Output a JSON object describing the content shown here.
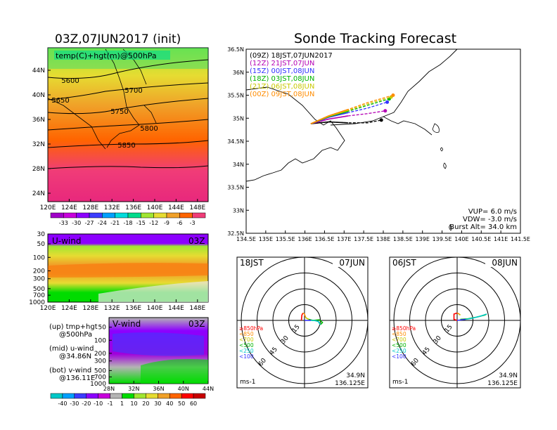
{
  "left_title": "03Z,07JUN2017 (init)",
  "right_title": "Sonde Tracking Forecast",
  "left_caption": {
    "line1": "(up) tmp+hgt",
    "line2": "@500hPa",
    "line3": "(mid) u-wind",
    "line4": "@34.86N",
    "line5": "(bot) v-wind",
    "line6": "@136.11E"
  },
  "chart_data": [
    {
      "type": "heatmap",
      "panel": "temperature-height-500hPa",
      "title": "temp(C)+hgt(m)@500hPa",
      "x_ticks": [
        "120E",
        "124E",
        "128E",
        "132E",
        "136E",
        "140E",
        "144E",
        "148E"
      ],
      "y_ticks": [
        "44N",
        "40N",
        "36N",
        "32N",
        "28N",
        "24N"
      ],
      "contour_labels": [
        "5600",
        "5650",
        "5700",
        "5750",
        "5800",
        "5850"
      ],
      "colorbar": {
        "labels": [
          "-33",
          "-30",
          "-27",
          "-24",
          "-21",
          "-18",
          "-15",
          "-12",
          "-9",
          "-6",
          "-3"
        ],
        "colors": [
          "#a000c8",
          "#c800dc",
          "#8c00ff",
          "#3c3cff",
          "#00a0ff",
          "#00dcdc",
          "#00dc8c",
          "#a0e632",
          "#e6dc32",
          "#f0a028",
          "#ff6400",
          "#f03c78"
        ]
      }
    },
    {
      "type": "heatmap",
      "panel": "u-wind-cross-section",
      "title": "U-wind",
      "time_label": "03Z",
      "x_ticks": [
        "120E",
        "124E",
        "128E",
        "132E",
        "136E",
        "140E",
        "144E",
        "148E"
      ],
      "y_ticks": [
        "30",
        "50",
        "100",
        "200",
        "300",
        "500",
        "700",
        "1000"
      ]
    },
    {
      "type": "heatmap",
      "panel": "v-wind-cross-section",
      "title": "V-wind",
      "time_label": "03Z",
      "x_ticks": [
        "28N",
        "32N",
        "36N",
        "40N",
        "44N"
      ],
      "y_ticks": [
        "50",
        "100",
        "200",
        "300",
        "500",
        "700",
        "1000"
      ],
      "colorbar": {
        "labels": [
          "-40",
          "-30",
          "-20",
          "-10",
          "-1",
          "1",
          "10",
          "20",
          "30",
          "40",
          "50",
          "60"
        ],
        "colors": [
          "#00c8c8",
          "#00a0ff",
          "#3c3cff",
          "#8c00ff",
          "#c800dc",
          "#b4b4b4",
          "#00dc00",
          "#a0e632",
          "#e6dc32",
          "#f0a028",
          "#ff6400",
          "#ff0000",
          "#c80000"
        ]
      }
    },
    {
      "type": "line",
      "panel": "sonde-track-map",
      "x_ticks": [
        "134.5E",
        "135E",
        "135.5E",
        "136E",
        "136.5E",
        "137E",
        "137.5E",
        "138E",
        "138.5E",
        "139E",
        "139.5E",
        "140E",
        "140.5E",
        "141E",
        "141.5E"
      ],
      "y_ticks": [
        "36.5N",
        "36N",
        "35.5N",
        "35N",
        "34.5N",
        "34N",
        "33.5N",
        "33N",
        "32.5N"
      ],
      "xlim": [
        134.5,
        141.5
      ],
      "ylim": [
        32.5,
        36.5
      ],
      "series": [
        {
          "name": "(09Z)  18JST,07JUN2017",
          "color": "#000000",
          "x": [
            136.15,
            136.6,
            137.1,
            137.6,
            137.95
          ],
          "y": [
            34.88,
            34.92,
            34.9,
            34.9,
            34.96
          ]
        },
        {
          "name": "(12Z)  21JST,07JUN",
          "color": "#b400b4",
          "x": [
            136.15,
            136.6,
            137.1,
            137.6,
            138.05
          ],
          "y": [
            34.88,
            34.98,
            35.05,
            35.1,
            35.16
          ]
        },
        {
          "name": "(15Z)  00JST,08JUN",
          "color": "#3232ff",
          "x": [
            136.15,
            136.6,
            137.1,
            137.6,
            138.1
          ],
          "y": [
            34.88,
            35.02,
            35.12,
            35.22,
            35.35
          ]
        },
        {
          "name": "(18Z)  03JST,08JUN",
          "color": "#00b400",
          "x": [
            136.15,
            136.6,
            137.1,
            137.6,
            138.15
          ],
          "y": [
            34.88,
            35.03,
            35.15,
            35.28,
            35.42
          ]
        },
        {
          "name": "(21Z)  06JST,08JUN",
          "color": "#c8c800",
          "x": [
            136.15,
            136.6,
            137.1,
            137.6,
            138.2
          ],
          "y": [
            34.88,
            35.04,
            35.17,
            35.31,
            35.46
          ]
        },
        {
          "name": "(00Z)  09JST,08JUN",
          "color": "#ff8c00",
          "x": [
            136.15,
            136.6,
            137.1,
            137.6,
            138.25
          ],
          "y": [
            34.88,
            35.05,
            35.19,
            35.34,
            35.5
          ]
        }
      ],
      "params": {
        "vup": "VUP=  6.0  m/s",
        "vdw": "VDW=  -3.0  m/s",
        "burst": "Burst Alt=  34.0  km"
      }
    },
    {
      "type": "line",
      "panel": "hodograph-18JST",
      "left_label": "18JST",
      "right_label": "07JUN",
      "ring_labels": [
        "15",
        "30",
        "45",
        "60"
      ],
      "unit": "ms-1",
      "position": [
        "34.9N",
        "136.125E"
      ],
      "legend": [
        {
          "label": "≥850hPa",
          "color": "#ff0000"
        },
        {
          "label": "<850",
          "color": "#ff8c00"
        },
        {
          "label": "<700",
          "color": "#c8c800"
        },
        {
          "label": "<500",
          "color": "#00b400"
        },
        {
          "label": "<250",
          "color": "#00c8c8"
        },
        {
          "label": "<100",
          "color": "#3232ff"
        }
      ],
      "series": [
        {
          "color": "#ff0000",
          "u": [
            -3,
            -2.5,
            -1.5
          ],
          "v": [
            0,
            5,
            7
          ]
        },
        {
          "color": "#ff8c00",
          "u": [
            -1.5,
            0,
            1
          ],
          "v": [
            7,
            6,
            3
          ]
        },
        {
          "color": "#c8c800",
          "u": [
            1,
            2,
            4
          ],
          "v": [
            3,
            2,
            1
          ]
        },
        {
          "color": "#00b400",
          "u": [
            4,
            8,
            14,
            17,
            15
          ],
          "v": [
            1,
            0,
            0.5,
            -2,
            -4
          ]
        },
        {
          "color": "#00c8c8",
          "u": [
            15,
            13,
            10,
            6
          ],
          "v": [
            -4,
            -1,
            -0.2,
            0
          ]
        },
        {
          "color": "#3232ff",
          "u": [
            6,
            3,
            0
          ],
          "v": [
            0,
            0,
            0
          ]
        }
      ]
    },
    {
      "type": "line",
      "panel": "hodograph-06JST",
      "left_label": "06JST",
      "right_label": "08JUN",
      "ring_labels": [
        "15",
        "30",
        "45",
        "60"
      ],
      "unit": "ms-1",
      "position": [
        "34.9N",
        "136.125E"
      ],
      "legend": [
        {
          "label": "≥850hPa",
          "color": "#ff0000"
        },
        {
          "label": "<850",
          "color": "#ff8c00"
        },
        {
          "label": "<700",
          "color": "#c8c800"
        },
        {
          "label": "<500",
          "color": "#00b400"
        },
        {
          "label": "<250",
          "color": "#00c8c8"
        },
        {
          "label": "<100",
          "color": "#3232ff"
        }
      ],
      "series": [
        {
          "color": "#ff0000",
          "u": [
            0,
            -3,
            -3,
            0
          ],
          "v": [
            0,
            1,
            6,
            7
          ]
        },
        {
          "color": "#ff8c00",
          "u": [
            0,
            2
          ],
          "v": [
            7,
            6
          ]
        },
        {
          "color": "#c8c800",
          "u": [
            2,
            3
          ],
          "v": [
            6,
            5
          ]
        },
        {
          "color": "#00b400",
          "u": [
            3,
            10,
            18,
            26,
            28
          ],
          "v": [
            1,
            1.5,
            3,
            5,
            6
          ]
        },
        {
          "color": "#00c8c8",
          "u": [
            28,
            22,
            14,
            8
          ],
          "v": [
            6,
            4,
            2,
            1
          ]
        },
        {
          "color": "#3232ff",
          "u": [
            8,
            4,
            0
          ],
          "v": [
            1,
            0.5,
            0
          ]
        }
      ]
    }
  ]
}
